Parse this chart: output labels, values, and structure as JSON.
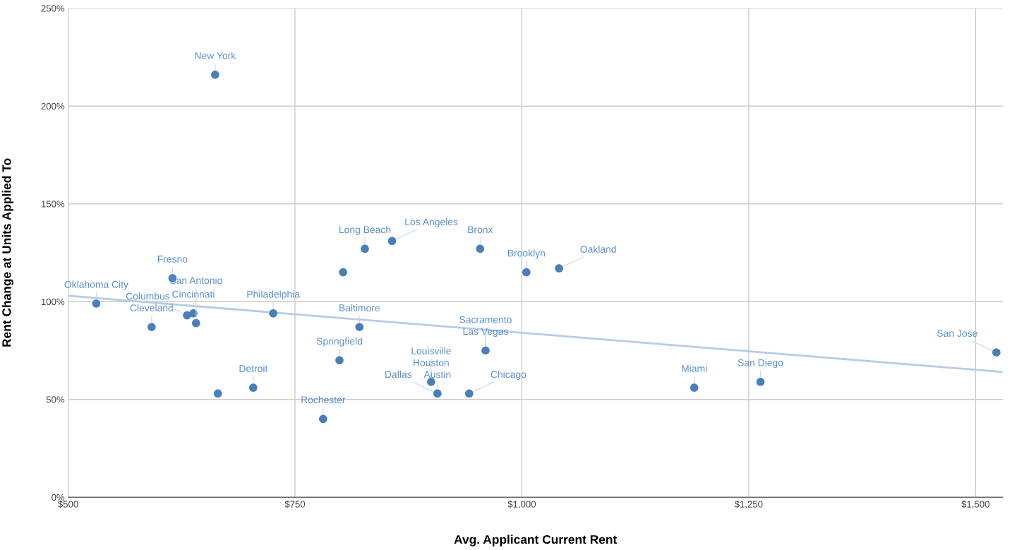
{
  "chart_data": {
    "type": "scatter",
    "xlabel": "Avg. Applicant Current Rent",
    "ylabel": "Rent Change at Units Applied To",
    "xlim": [
      500,
      1530
    ],
    "ylim": [
      0,
      250
    ],
    "xticks": [
      {
        "value": 500,
        "label": "$500"
      },
      {
        "value": 750,
        "label": "$750"
      },
      {
        "value": 1000,
        "label": "$1,000"
      },
      {
        "value": 1250,
        "label": "$1,250"
      },
      {
        "value": 1500,
        "label": "$1,500"
      }
    ],
    "yticks": [
      {
        "value": 0,
        "label": "0%"
      },
      {
        "value": 50,
        "label": "50%"
      },
      {
        "value": 100,
        "label": "100%"
      },
      {
        "value": 150,
        "label": "150%"
      },
      {
        "value": 200,
        "label": "200%"
      },
      {
        "value": 250,
        "label": "250%"
      }
    ],
    "grid": true,
    "series": [
      {
        "marker": "circle",
        "color": "#4a7ebb",
        "x": [
          662,
          531,
          615,
          592,
          631,
          638,
          641,
          665,
          704,
          726,
          781,
          799,
          803,
          827,
          821,
          857,
          900,
          907,
          942,
          954,
          960,
          1005,
          1041,
          1190,
          1263,
          1523
        ],
        "values": [
          216,
          99,
          112,
          87,
          93,
          94,
          89,
          53,
          56,
          94,
          40,
          70,
          115,
          127,
          87,
          131,
          59,
          53,
          53,
          127,
          75,
          115,
          117,
          56,
          59,
          74
        ]
      },
      {
        "type": "line",
        "color": "#b7cbe6",
        "x": [
          500,
          1530
        ],
        "values": [
          103,
          64
        ]
      }
    ],
    "annotations": [
      {
        "text": "New York",
        "x": 662,
        "y": 216
      },
      {
        "text": "Oklahoma City",
        "x": 531,
        "y": 99
      },
      {
        "text": "Fresno",
        "x": 615,
        "y": 112
      },
      {
        "text": "Cleveland",
        "x": 592,
        "y": 87
      },
      {
        "text": "Cincinnati",
        "x": 638,
        "y": 94
      },
      {
        "text": "Columbus",
        "x": 631,
        "y": 93
      },
      {
        "text": "San Antonio",
        "x": 641,
        "y": 89
      },
      {
        "text": "Detroit",
        "x": 704,
        "y": 56
      },
      {
        "text": "Philadelphia",
        "x": 726,
        "y": 94
      },
      {
        "text": "Rochester",
        "x": 781,
        "y": 40
      },
      {
        "text": "Springfield",
        "x": 799,
        "y": 70
      },
      {
        "text": "Long Beach",
        "x": 827,
        "y": 127
      },
      {
        "text": "Baltimore",
        "x": 821,
        "y": 87
      },
      {
        "text": "Los Angeles",
        "x": 857,
        "y": 131
      },
      {
        "text": "Houston",
        "x": 900,
        "y": 59
      },
      {
        "text": "Louisville",
        "x": 900,
        "y": 59
      },
      {
        "text": "Austin",
        "x": 907,
        "y": 53
      },
      {
        "text": "Dallas",
        "x": 907,
        "y": 53
      },
      {
        "text": "Chicago",
        "x": 942,
        "y": 53
      },
      {
        "text": "Bronx",
        "x": 954,
        "y": 127
      },
      {
        "text": "Las Vegas",
        "x": 960,
        "y": 75
      },
      {
        "text": "Sacramento",
        "x": 960,
        "y": 75
      },
      {
        "text": "Brooklyn",
        "x": 1005,
        "y": 115
      },
      {
        "text": "Oakland",
        "x": 1041,
        "y": 117
      },
      {
        "text": "Miami",
        "x": 1190,
        "y": 56
      },
      {
        "text": "San Diego",
        "x": 1263,
        "y": 59
      },
      {
        "text": "San Jose",
        "x": 1523,
        "y": 74
      }
    ]
  }
}
